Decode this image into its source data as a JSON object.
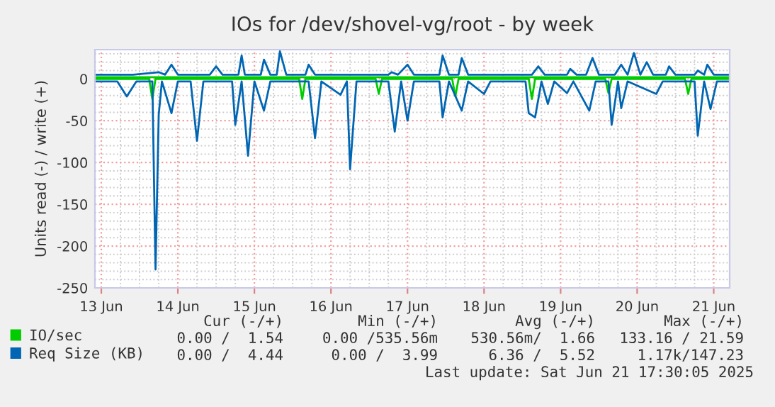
{
  "chart_data": {
    "type": "line",
    "title": "IOs for /dev/shovel-vg/root - by week",
    "ylabel": "Units read (-) / write (+)",
    "xlim": [
      "2025-06-12T22:00",
      "2025-06-21T05:00"
    ],
    "xticks": [
      {
        "value": "2025-06-13",
        "label": "13 Jun"
      },
      {
        "value": "2025-06-14",
        "label": "14 Jun"
      },
      {
        "value": "2025-06-15",
        "label": "15 Jun"
      },
      {
        "value": "2025-06-16",
        "label": "16 Jun"
      },
      {
        "value": "2025-06-17",
        "label": "17 Jun"
      },
      {
        "value": "2025-06-18",
        "label": "18 Jun"
      },
      {
        "value": "2025-06-19",
        "label": "19 Jun"
      },
      {
        "value": "2025-06-20",
        "label": "20 Jun"
      },
      {
        "value": "2025-06-21",
        "label": "21 Jun"
      }
    ],
    "ylim": [
      -250,
      35
    ],
    "yticks": [
      -250,
      -200,
      -150,
      -100,
      -50,
      0
    ],
    "grid": true,
    "legend": "bottom",
    "series": [
      {
        "name": "IO/sec",
        "color": "#00cc00",
        "x": [
          "2025-06-12T22:00",
          "2025-06-13T15:00",
          "2025-06-13T16:00",
          "2025-06-13T17:00",
          "2025-06-15T14:00",
          "2025-06-15T15:00",
          "2025-06-15T16:00",
          "2025-06-16T14:00",
          "2025-06-16T15:00",
          "2025-06-16T16:00",
          "2025-06-17T14:00",
          "2025-06-17T15:00",
          "2025-06-17T16:00",
          "2025-06-18T14:00",
          "2025-06-18T15:00",
          "2025-06-18T16:00",
          "2025-06-19T14:00",
          "2025-06-19T15:00",
          "2025-06-19T16:00",
          "2025-06-20T15:00",
          "2025-06-20T16:00",
          "2025-06-20T17:00",
          "2025-06-21T05:00"
        ],
        "values": [
          0,
          0,
          -24,
          0,
          0,
          -24,
          0,
          0,
          -18,
          0,
          0,
          -21,
          0,
          0,
          -24,
          0,
          0,
          -17,
          0,
          0,
          -18,
          0,
          0
        ]
      },
      {
        "color": "#00cc00",
        "x": [
          "2025-06-12T22:00",
          "2025-06-21T05:00"
        ],
        "values": [
          2,
          2
        ]
      },
      {
        "name": "Req Size (KB)",
        "color": "#0066b3",
        "x": [
          "2025-06-12T22:00",
          "2025-06-13T05:00",
          "2025-06-13T08:00",
          "2025-06-13T11:00",
          "2025-06-13T16:00",
          "2025-06-13T17:00",
          "2025-06-13T18:00",
          "2025-06-13T19:00",
          "2025-06-13T22:00",
          "2025-06-14T00:00",
          "2025-06-14T04:00",
          "2025-06-14T06:00",
          "2025-06-14T08:00",
          "2025-06-14T17:00",
          "2025-06-14T18:00",
          "2025-06-14T20:00",
          "2025-06-14T22:00",
          "2025-06-15T00:00",
          "2025-06-15T03:00",
          "2025-06-15T05:00",
          "2025-06-15T17:00",
          "2025-06-15T19:00",
          "2025-06-15T21:00",
          "2025-06-16T03:00",
          "2025-06-16T05:00",
          "2025-06-16T06:00",
          "2025-06-16T08:00",
          "2025-06-16T18:00",
          "2025-06-16T20:00",
          "2025-06-16T22:00",
          "2025-06-17T00:00",
          "2025-06-17T02:00",
          "2025-06-17T10:00",
          "2025-06-17T11:00",
          "2025-06-17T13:00",
          "2025-06-17T17:00",
          "2025-06-17T19:00",
          "2025-06-18T00:00",
          "2025-06-18T02:00",
          "2025-06-18T13:00",
          "2025-06-18T14:00",
          "2025-06-18T16:00",
          "2025-06-18T18:00",
          "2025-06-18T20:00",
          "2025-06-18T22:00",
          "2025-06-19T02:00",
          "2025-06-19T04:00",
          "2025-06-19T09:00",
          "2025-06-19T11:00",
          "2025-06-19T15:00",
          "2025-06-19T16:00",
          "2025-06-19T18:00",
          "2025-06-19T19:00",
          "2025-06-19T21:00",
          "2025-06-20T06:00",
          "2025-06-20T08:00",
          "2025-06-20T18:00",
          "2025-06-20T19:00",
          "2025-06-20T21:00",
          "2025-06-20T23:00",
          "2025-06-21T01:00",
          "2025-06-21T05:00"
        ],
        "values": [
          -3,
          -3,
          -21,
          -3,
          -3,
          -228,
          -43,
          -3,
          -41,
          -3,
          -3,
          -74,
          -3,
          -3,
          -55,
          -3,
          -92,
          -3,
          -38,
          -3,
          -3,
          -71,
          -3,
          -19,
          -3,
          -108,
          -3,
          -3,
          -63,
          -3,
          -50,
          -3,
          -3,
          -46,
          -3,
          -38,
          -3,
          -18,
          -3,
          -3,
          -41,
          -46,
          -3,
          -30,
          -3,
          -17,
          -3,
          -38,
          -3,
          -3,
          -55,
          -3,
          -35,
          -3,
          -18,
          -3,
          -3,
          -68,
          -3,
          -36,
          -3,
          -3
        ]
      },
      {
        "color": "#0066b3",
        "x": [
          "2025-06-12T22:00",
          "2025-06-13T10:00",
          "2025-06-13T18:00",
          "2025-06-13T20:00",
          "2025-06-13T22:00",
          "2025-06-14T00:00",
          "2025-06-14T10:00",
          "2025-06-14T12:00",
          "2025-06-14T14:00",
          "2025-06-14T19:00",
          "2025-06-14T20:00",
          "2025-06-14T21:00",
          "2025-06-15T02:00",
          "2025-06-15T03:00",
          "2025-06-15T05:00",
          "2025-06-15T07:00",
          "2025-06-15T08:00",
          "2025-06-15T10:00",
          "2025-06-15T16:00",
          "2025-06-15T17:00",
          "2025-06-15T19:00",
          "2025-06-16T18:00",
          "2025-06-16T19:00",
          "2025-06-16T21:00",
          "2025-06-17T00:00",
          "2025-06-17T02:00",
          "2025-06-17T10:00",
          "2025-06-17T11:00",
          "2025-06-17T13:00",
          "2025-06-17T16:00",
          "2025-06-17T17:00",
          "2025-06-17T19:00",
          "2025-06-18T15:00",
          "2025-06-18T17:00",
          "2025-06-18T19:00",
          "2025-06-19T02:00",
          "2025-06-19T03:00",
          "2025-06-19T05:00",
          "2025-06-19T08:00",
          "2025-06-19T10:00",
          "2025-06-19T12:00",
          "2025-06-19T17:00",
          "2025-06-19T19:00",
          "2025-06-19T21:00",
          "2025-06-19T23:00",
          "2025-06-20T01:00",
          "2025-06-20T03:00",
          "2025-06-20T05:00",
          "2025-06-20T09:00",
          "2025-06-20T10:00",
          "2025-06-20T12:00",
          "2025-06-20T18:00",
          "2025-06-20T19:00",
          "2025-06-20T21:00",
          "2025-06-20T22:00",
          "2025-06-21T00:00",
          "2025-06-21T05:00"
        ],
        "values": [
          5,
          5,
          8,
          5,
          17,
          5,
          5,
          15,
          5,
          5,
          28,
          5,
          5,
          23,
          5,
          5,
          33,
          5,
          5,
          17,
          5,
          5,
          8,
          5,
          17,
          5,
          5,
          28,
          5,
          5,
          25,
          5,
          5,
          15,
          5,
          5,
          12,
          5,
          5,
          25,
          5,
          5,
          17,
          5,
          31,
          5,
          20,
          5,
          5,
          15,
          5,
          5,
          10,
          5,
          17,
          5,
          5
        ]
      }
    ],
    "annotations": [
      "Cur (-/+)",
      "Min (-/+)",
      "Avg (-/+)",
      "Max (-/+)",
      "0.00 /  1.54",
      "0.00 /535.56m",
      "530.56m/  1.66",
      "133.16 / 21.59",
      "0.00 /  4.44",
      "0.00 /  3.99",
      "6.36 /  5.52",
      "1.17k/147.23",
      "Last update: Sat Jun 21 17:30:05 2025"
    ]
  }
}
